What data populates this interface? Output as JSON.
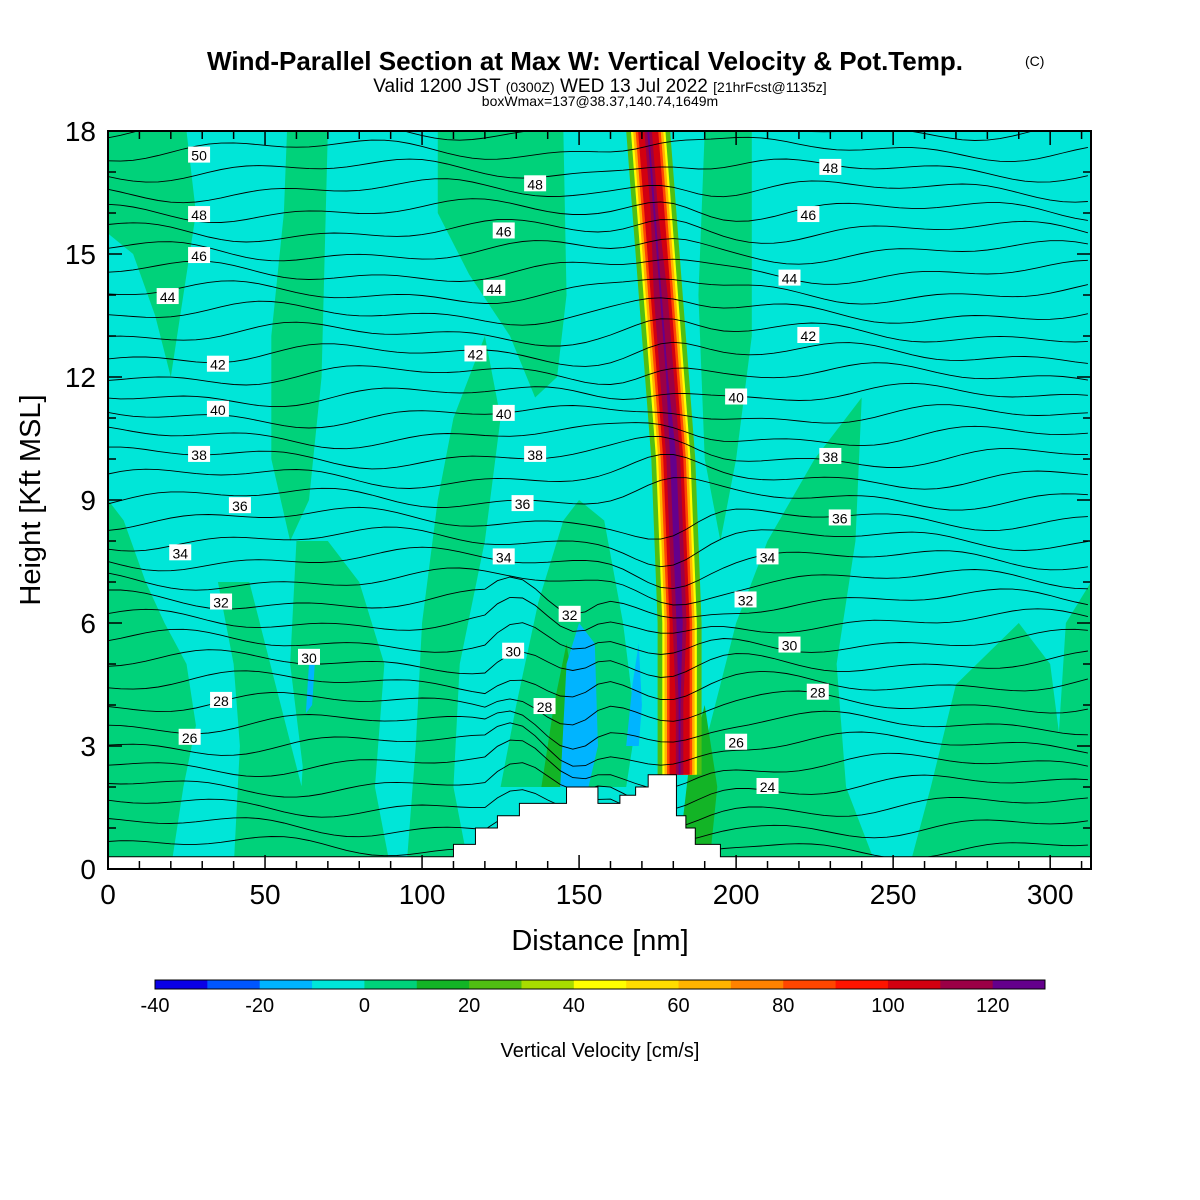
{
  "header": {
    "title": "Wind-Parallel Section at Max W: Vertical Velocity & Pot.Temp.",
    "copyright": "(C)",
    "valid_prefix": "Valid 1200 JST",
    "valid_utc": "(0300Z)",
    "valid_date": "WED 13 Jul 2022",
    "forecast": "[21hrFcst@1135z]",
    "boxinfo": "boxWmax=137@38.37,140.74,1649m"
  },
  "chart_data": {
    "type": "heatmap",
    "xlabel": "Distance [nm]",
    "ylabel": "Height [Kft MSL]",
    "xlim": [
      0,
      313
    ],
    "ylim": [
      0,
      18
    ],
    "x_ticks": [
      "0",
      "50",
      "100",
      "150",
      "200",
      "250",
      "300"
    ],
    "y_ticks": [
      "0",
      "3",
      "6",
      "9",
      "12",
      "15",
      "18"
    ],
    "colorbar": {
      "label": "Vertical Velocity [cm/s]",
      "min": -40,
      "max": 130,
      "step": 10,
      "tick_labels": [
        "-40",
        "-20",
        "0",
        "20",
        "40",
        "60",
        "80",
        "100",
        "120"
      ],
      "colors": [
        "#0a00e6",
        "#0056ff",
        "#00b4ff",
        "#00e6d8",
        "#00d27a",
        "#13b426",
        "#50be12",
        "#a8dc00",
        "#ffff00",
        "#ffdc00",
        "#ffb400",
        "#ff8200",
        "#ff4600",
        "#ff1400",
        "#d20010",
        "#9b0046",
        "#64008c"
      ]
    },
    "theta_contours": {
      "unit_values_K_mod": [
        24,
        26,
        28,
        30,
        32,
        34,
        36,
        38,
        40,
        42,
        44,
        46,
        48,
        50
      ],
      "labels": [
        {
          "text": "50",
          "x": 29,
          "y": 17.4
        },
        {
          "text": "48",
          "x": 29,
          "y": 15.95
        },
        {
          "text": "46",
          "x": 29,
          "y": 14.95
        },
        {
          "text": "44",
          "x": 19,
          "y": 13.95
        },
        {
          "text": "42",
          "x": 35,
          "y": 12.3
        },
        {
          "text": "40",
          "x": 35,
          "y": 11.2
        },
        {
          "text": "38",
          "x": 29,
          "y": 10.1
        },
        {
          "text": "36",
          "x": 42,
          "y": 8.85
        },
        {
          "text": "34",
          "x": 23,
          "y": 7.7
        },
        {
          "text": "32",
          "x": 36,
          "y": 6.5
        },
        {
          "text": "30",
          "x": 64,
          "y": 5.15
        },
        {
          "text": "28",
          "x": 36,
          "y": 4.1
        },
        {
          "text": "26",
          "x": 26,
          "y": 3.2
        },
        {
          "text": "48",
          "x": 136,
          "y": 16.7
        },
        {
          "text": "46",
          "x": 126,
          "y": 15.55
        },
        {
          "text": "44",
          "x": 123,
          "y": 14.15
        },
        {
          "text": "42",
          "x": 117,
          "y": 12.55
        },
        {
          "text": "40",
          "x": 126,
          "y": 11.1
        },
        {
          "text": "38",
          "x": 136,
          "y": 10.1
        },
        {
          "text": "36",
          "x": 132,
          "y": 8.9
        },
        {
          "text": "34",
          "x": 126,
          "y": 7.6
        },
        {
          "text": "32",
          "x": 147,
          "y": 6.2
        },
        {
          "text": "30",
          "x": 129,
          "y": 5.3
        },
        {
          "text": "28",
          "x": 139,
          "y": 3.95
        },
        {
          "text": "48",
          "x": 230,
          "y": 17.1
        },
        {
          "text": "46",
          "x": 223,
          "y": 15.95
        },
        {
          "text": "44",
          "x": 217,
          "y": 14.4
        },
        {
          "text": "42",
          "x": 223,
          "y": 13.0
        },
        {
          "text": "40",
          "x": 200,
          "y": 11.5
        },
        {
          "text": "38",
          "x": 230,
          "y": 10.05
        },
        {
          "text": "36",
          "x": 233,
          "y": 8.55
        },
        {
          "text": "34",
          "x": 210,
          "y": 7.6
        },
        {
          "text": "32",
          "x": 203,
          "y": 6.55
        },
        {
          "text": "30",
          "x": 217,
          "y": 5.45
        },
        {
          "text": "28",
          "x": 226,
          "y": 4.3
        },
        {
          "text": "26",
          "x": 200,
          "y": 3.08
        },
        {
          "text": "24",
          "x": 210,
          "y": 2.0
        }
      ]
    },
    "terrain_profile_kft": [
      [
        0,
        0.3
      ],
      [
        110,
        0.3
      ],
      [
        110,
        0.6
      ],
      [
        117,
        0.6
      ],
      [
        117,
        1.0
      ],
      [
        124,
        1.0
      ],
      [
        124,
        1.3
      ],
      [
        131,
        1.3
      ],
      [
        131,
        1.6
      ],
      [
        146,
        1.6
      ],
      [
        146,
        2.0
      ],
      [
        156,
        2.0
      ],
      [
        156,
        1.6
      ],
      [
        163,
        1.6
      ],
      [
        163,
        1.8
      ],
      [
        168,
        1.8
      ],
      [
        168,
        2.0
      ],
      [
        172,
        2.0
      ],
      [
        172,
        2.3
      ],
      [
        181,
        2.3
      ],
      [
        181,
        1.3
      ],
      [
        184,
        1.3
      ],
      [
        184,
        1.0
      ],
      [
        187,
        1.0
      ],
      [
        187,
        0.6
      ],
      [
        195,
        0.6
      ],
      [
        195,
        0.3
      ],
      [
        313,
        0.3
      ]
    ],
    "max_updraft": {
      "value_cm_s": 137,
      "x_nm": 178,
      "height_m": 1649
    }
  }
}
